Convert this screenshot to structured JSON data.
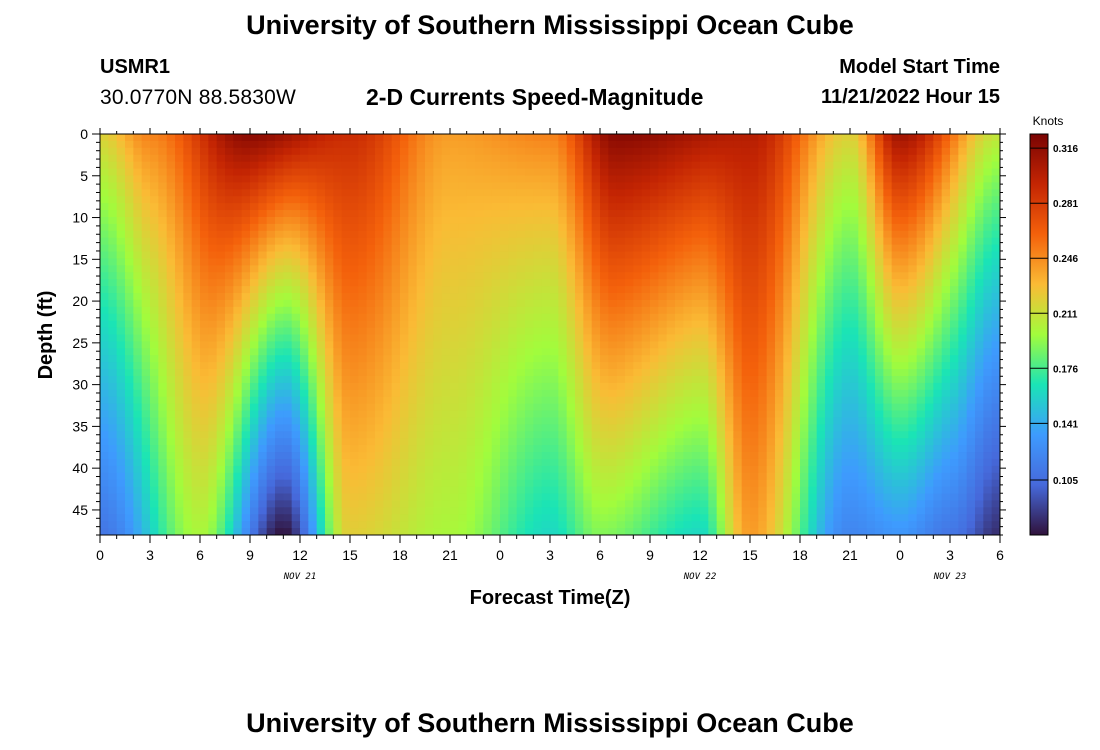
{
  "header": {
    "title": "University of Southern Mississippi Ocean Cube",
    "station_id": "USMR1",
    "coordinates": "30.0770N  88.5830W",
    "subtitle": "2-D Currents Speed-Magnitude",
    "model_start_label": "Model Start Time",
    "model_start_value": "11/21/2022 Hour 15"
  },
  "footer": {
    "title": "University of Southern Mississippi Ocean Cube"
  },
  "chart_data": {
    "type": "heatmap",
    "title": "2-D Currents Speed-Magnitude",
    "xlabel": "Forecast Time(Z)",
    "ylabel": "Depth (ft)",
    "x_tick_labels": [
      "0",
      "3",
      "6",
      "9",
      "12",
      "15",
      "18",
      "21",
      "0",
      "3",
      "6",
      "9",
      "12",
      "15",
      "18",
      "21",
      "0",
      "3",
      "6"
    ],
    "x_hours": [
      0,
      3,
      6,
      9,
      12,
      15,
      18,
      21,
      24,
      27,
      30,
      33,
      36,
      39,
      42,
      45,
      48,
      51,
      54
    ],
    "xlim": [
      0,
      54
    ],
    "date_labels": [
      {
        "text": "NOV 21",
        "hour": 12
      },
      {
        "text": "NOV 22",
        "hour": 36
      },
      {
        "text": "NOV 23",
        "hour": 51
      }
    ],
    "y_tick_labels": [
      "0",
      "5",
      "10",
      "15",
      "20",
      "25",
      "30",
      "35",
      "40",
      "45"
    ],
    "y_depths": [
      0,
      5,
      10,
      15,
      20,
      25,
      30,
      35,
      40,
      45
    ],
    "ylim": [
      0,
      48
    ],
    "grid": false,
    "colorbar": {
      "unit": "Knots",
      "ticks": [
        "0.316",
        "0.281",
        "0.246",
        "0.211",
        "0.176",
        "0.141",
        "0.105"
      ],
      "tick_values": [
        0.316,
        0.281,
        0.246,
        0.211,
        0.176,
        0.141,
        0.105
      ],
      "range": [
        0.07,
        0.325
      ],
      "colors": [
        "#30123b",
        "#4669db",
        "#3e9bfe",
        "#1ae4b6",
        "#a2fc3c",
        "#fabb35",
        "#f4610b",
        "#c42503",
        "#7a0403"
      ]
    },
    "surface_speed_profile": [
      {
        "hour": 0,
        "value": 0.22
      },
      {
        "hour": 3,
        "value": 0.25
      },
      {
        "hour": 9,
        "value": 0.32
      },
      {
        "hour": 15,
        "value": 0.29
      },
      {
        "hour": 21,
        "value": 0.24
      },
      {
        "hour": 27,
        "value": 0.25
      },
      {
        "hour": 31,
        "value": 0.32
      },
      {
        "hour": 39,
        "value": 0.3
      },
      {
        "hour": 45,
        "value": 0.22
      },
      {
        "hour": 48,
        "value": 0.31
      },
      {
        "hour": 54,
        "value": 0.21
      }
    ],
    "bottom_speed_profile": [
      {
        "hour": 0,
        "value": 0.11
      },
      {
        "hour": 6,
        "value": 0.2
      },
      {
        "hour": 11,
        "value": 0.07
      },
      {
        "hour": 15,
        "value": 0.22
      },
      {
        "hour": 21,
        "value": 0.2
      },
      {
        "hour": 27,
        "value": 0.16
      },
      {
        "hour": 30,
        "value": 0.19
      },
      {
        "hour": 36,
        "value": 0.16
      },
      {
        "hour": 39,
        "value": 0.24
      },
      {
        "hour": 45,
        "value": 0.12
      },
      {
        "hour": 48,
        "value": 0.13
      },
      {
        "hour": 51,
        "value": 0.11
      },
      {
        "hour": 54,
        "value": 0.08
      }
    ]
  }
}
